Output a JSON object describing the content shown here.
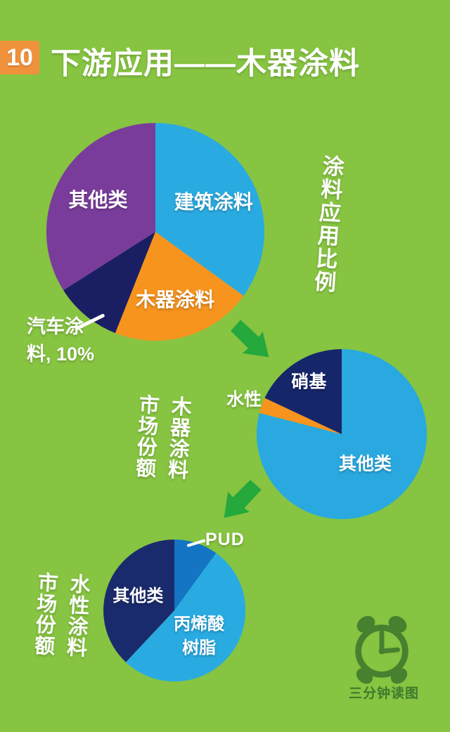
{
  "page": {
    "bg_color": "#86C441"
  },
  "header": {
    "badge": "10",
    "badge_color": "#F0913C",
    "title": "下游应用——木器涂料"
  },
  "side_titles": {
    "app_ratio": "涂料应用比例",
    "wood_col_right": "木器涂料",
    "wood_col_left": "市场份额",
    "water_col_right": "水性涂料",
    "water_col_left": "市场份额"
  },
  "chart_data": [
    {
      "type": "pie",
      "name": "coating-application-ratio",
      "title": "涂料应用比例",
      "start_angle": 0,
      "clockwise": true,
      "slices": [
        {
          "label": "建筑涂料",
          "value": 35,
          "color": "#29ABE2",
          "inside": true,
          "label_r": 0.6
        },
        {
          "label": "木器涂料",
          "value": 21,
          "color": "#F7941E",
          "inside": true,
          "label_r": 0.65
        },
        {
          "label": "汽车涂料",
          "value": 10,
          "color": "#1A1F63",
          "inside": false,
          "pct_text": "10%",
          "label_lines": [
            "汽车涂",
            "料, 10%"
          ]
        },
        {
          "label": "其他类",
          "value": 34,
          "color": "#7A3C9B",
          "inside": true,
          "label_r": 0.6
        }
      ]
    },
    {
      "type": "pie",
      "name": "wood-coating-market-share",
      "title": "木器涂料市场份额",
      "start_angle": 0,
      "clockwise": true,
      "slices": [
        {
          "label": "其他类",
          "value": 79,
          "color": "#29A9E0",
          "inside": true,
          "label_r": 0.45
        },
        {
          "label": "水性",
          "value": 3,
          "color": "#F7941E",
          "inside": false
        },
        {
          "label": "硝基",
          "value": 18,
          "color": "#16266B",
          "inside": true,
          "label_r": 0.72
        }
      ]
    },
    {
      "type": "pie",
      "name": "waterborne-coating-market-share",
      "title": "水性涂料市场份额",
      "start_angle": 0,
      "clockwise": true,
      "slices": [
        {
          "label": "PUD",
          "value": 10,
          "color": "#1375C4",
          "inside": false
        },
        {
          "label": "丙烯酸树脂",
          "value": 52,
          "color": "#29ABE2",
          "inside": true,
          "label_r": 0.58,
          "label_dx": -10,
          "label_lines_inside": [
            "丙烯酸",
            "树脂"
          ]
        },
        {
          "label": "其他类",
          "value": 38,
          "color": "#1A2B6D",
          "inside": true,
          "label_r": 0.55
        }
      ]
    }
  ],
  "arrows": {
    "color": "#25A83C"
  },
  "footer": {
    "logo_icon": "alarm-clock",
    "logo_text": "三分钟读图",
    "logo_color": "#47812F"
  }
}
